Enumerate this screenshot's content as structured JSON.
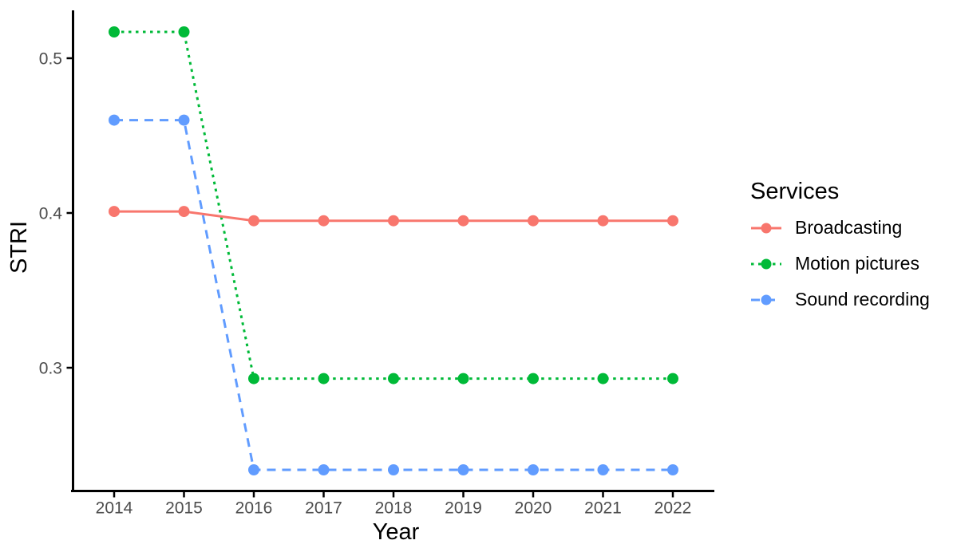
{
  "chart_data": {
    "type": "line",
    "title": "",
    "xlabel": "Year",
    "ylabel": "STRI",
    "legend_title": "Services",
    "legend_position": "right",
    "background": "#FFFFFF",
    "grid": false,
    "axis_color": "#000000",
    "tick_label_color": "#4D4D4D",
    "categories": [
      "2014",
      "2015",
      "2016",
      "2017",
      "2018",
      "2019",
      "2020",
      "2021",
      "2022"
    ],
    "y_ticks": [
      0.3,
      0.4,
      0.5
    ],
    "ylim": [
      0.22,
      0.53
    ],
    "marker": "circle",
    "series": [
      {
        "name": "Broadcasting",
        "color": "#F8766D",
        "linestyle": "solid",
        "values": [
          0.401,
          0.401,
          0.395,
          0.395,
          0.395,
          0.395,
          0.395,
          0.395,
          0.395
        ]
      },
      {
        "name": "Motion pictures",
        "color": "#00BA38",
        "linestyle": "dotted",
        "values": [
          0.517,
          0.517,
          0.293,
          0.293,
          0.293,
          0.293,
          0.293,
          0.293,
          0.293
        ]
      },
      {
        "name": "Sound recording",
        "color": "#619CFF",
        "linestyle": "dashed",
        "values": [
          0.46,
          0.46,
          0.234,
          0.234,
          0.234,
          0.234,
          0.234,
          0.234,
          0.234
        ]
      }
    ]
  }
}
